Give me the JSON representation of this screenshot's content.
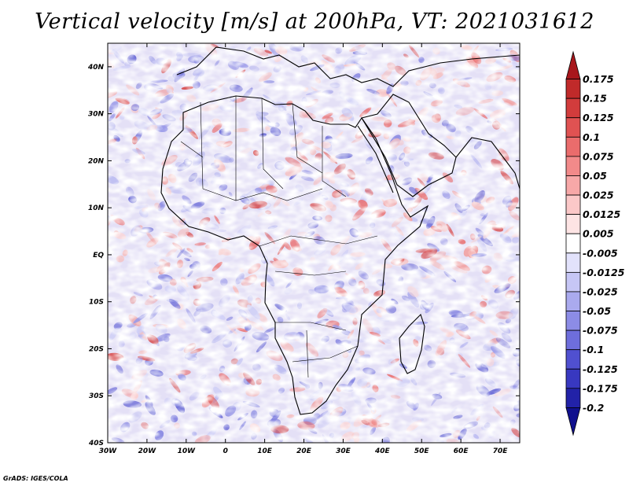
{
  "title": "Vertical velocity [m/s] at 200hPa, VT: 2021031612",
  "footer": "GrADS: IGES/COLA",
  "map": {
    "lat_labels": [
      "40N",
      "30N",
      "20N",
      "10N",
      "EQ",
      "10S",
      "20S",
      "30S",
      "40S"
    ],
    "lat_values": [
      40,
      30,
      20,
      10,
      0,
      -10,
      -20,
      -30,
      -40
    ],
    "lon_labels": [
      "30W",
      "20W",
      "10W",
      "0",
      "10E",
      "20E",
      "30E",
      "40E",
      "50E",
      "60E",
      "70E"
    ],
    "lon_values": [
      -30,
      -20,
      -10,
      0,
      10,
      20,
      30,
      40,
      50,
      60,
      70
    ],
    "lon_range": [
      -30,
      75
    ],
    "lat_range": [
      -40,
      45
    ]
  },
  "colorbar": {
    "labels": [
      "0.175",
      "0.15",
      "0.125",
      "0.1",
      "0.075",
      "0.05",
      "0.025",
      "0.0125",
      "0.005",
      "-0.005",
      "-0.0125",
      "-0.025",
      "-0.05",
      "-0.075",
      "-0.1",
      "-0.125",
      "-0.175",
      "-0.2"
    ],
    "colors": [
      "#a8171c",
      "#c02a2a",
      "#d23c3c",
      "#e05252",
      "#ea6c6c",
      "#f28a8a",
      "#f7a8a8",
      "#fbc8c8",
      "#fde4e4",
      "#ffffff",
      "#e2e2fb",
      "#c6c6f5",
      "#aaaaee",
      "#8c8ce6",
      "#6e6edc",
      "#5050d0",
      "#3838c0",
      "#2222a8",
      "#10108e"
    ]
  },
  "chart_data": {
    "type": "heatmap",
    "title": "Vertical velocity [m/s] at 200hPa, VT: 2021031612",
    "variable": "Vertical velocity",
    "units": "m/s",
    "level": "200hPa",
    "valid_time": "2021031612",
    "x_axis": "longitude",
    "y_axis": "latitude",
    "xlim": [
      -30,
      75
    ],
    "ylim": [
      -40,
      45
    ],
    "color_levels": [
      -0.2,
      -0.175,
      -0.125,
      -0.1,
      -0.075,
      -0.05,
      -0.025,
      -0.0125,
      -0.005,
      0.005,
      0.0125,
      0.025,
      0.05,
      0.075,
      0.1,
      0.125,
      0.15,
      0.175
    ]
  }
}
